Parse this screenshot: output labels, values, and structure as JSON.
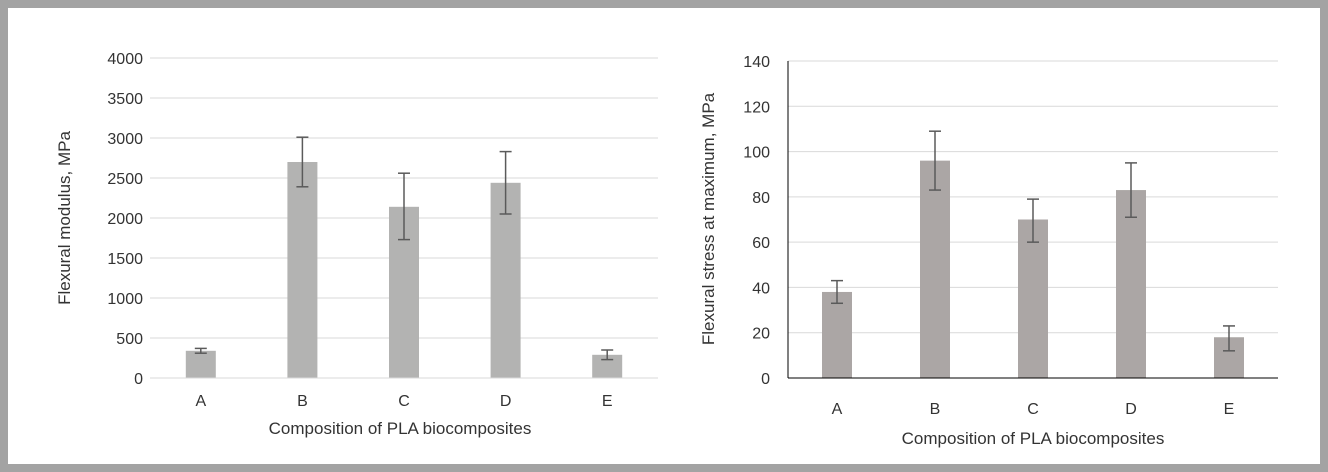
{
  "colors": {
    "frame": "#a3a3a3",
    "bar_left": "#b3b3b2",
    "bar_right": "#aba6a5",
    "grid": "#d9d9d9",
    "axis": "#000000",
    "error": "#5a5a5a"
  },
  "chart_data": [
    {
      "type": "bar",
      "title": "",
      "xlabel": "Composition of PLA biocomposites",
      "ylabel": "Flexural modulus, MPa",
      "categories": [
        "A",
        "B",
        "C",
        "D",
        "E"
      ],
      "values": [
        340,
        2700,
        2140,
        2440,
        290
      ],
      "error_low": [
        310,
        2390,
        1730,
        2050,
        230
      ],
      "error_high": [
        370,
        3010,
        2560,
        2830,
        350
      ],
      "ylim": [
        0,
        4000
      ],
      "yticks": [
        0,
        500,
        1000,
        1500,
        2000,
        2500,
        3000,
        3500,
        4000
      ],
      "grid": true,
      "legend": "none"
    },
    {
      "type": "bar",
      "title": "",
      "xlabel": "Composition of PLA biocomposites",
      "ylabel": "Flexural stress at maximum, MPa",
      "categories": [
        "A",
        "B",
        "C",
        "D",
        "E"
      ],
      "values": [
        38,
        96,
        70,
        83,
        18
      ],
      "error_low": [
        33,
        83,
        60,
        71,
        12
      ],
      "error_high": [
        43,
        109,
        79,
        95,
        23
      ],
      "ylim": [
        0,
        140
      ],
      "yticks": [
        0,
        20,
        40,
        60,
        80,
        100,
        120,
        140
      ],
      "grid": true,
      "legend": "none"
    }
  ]
}
